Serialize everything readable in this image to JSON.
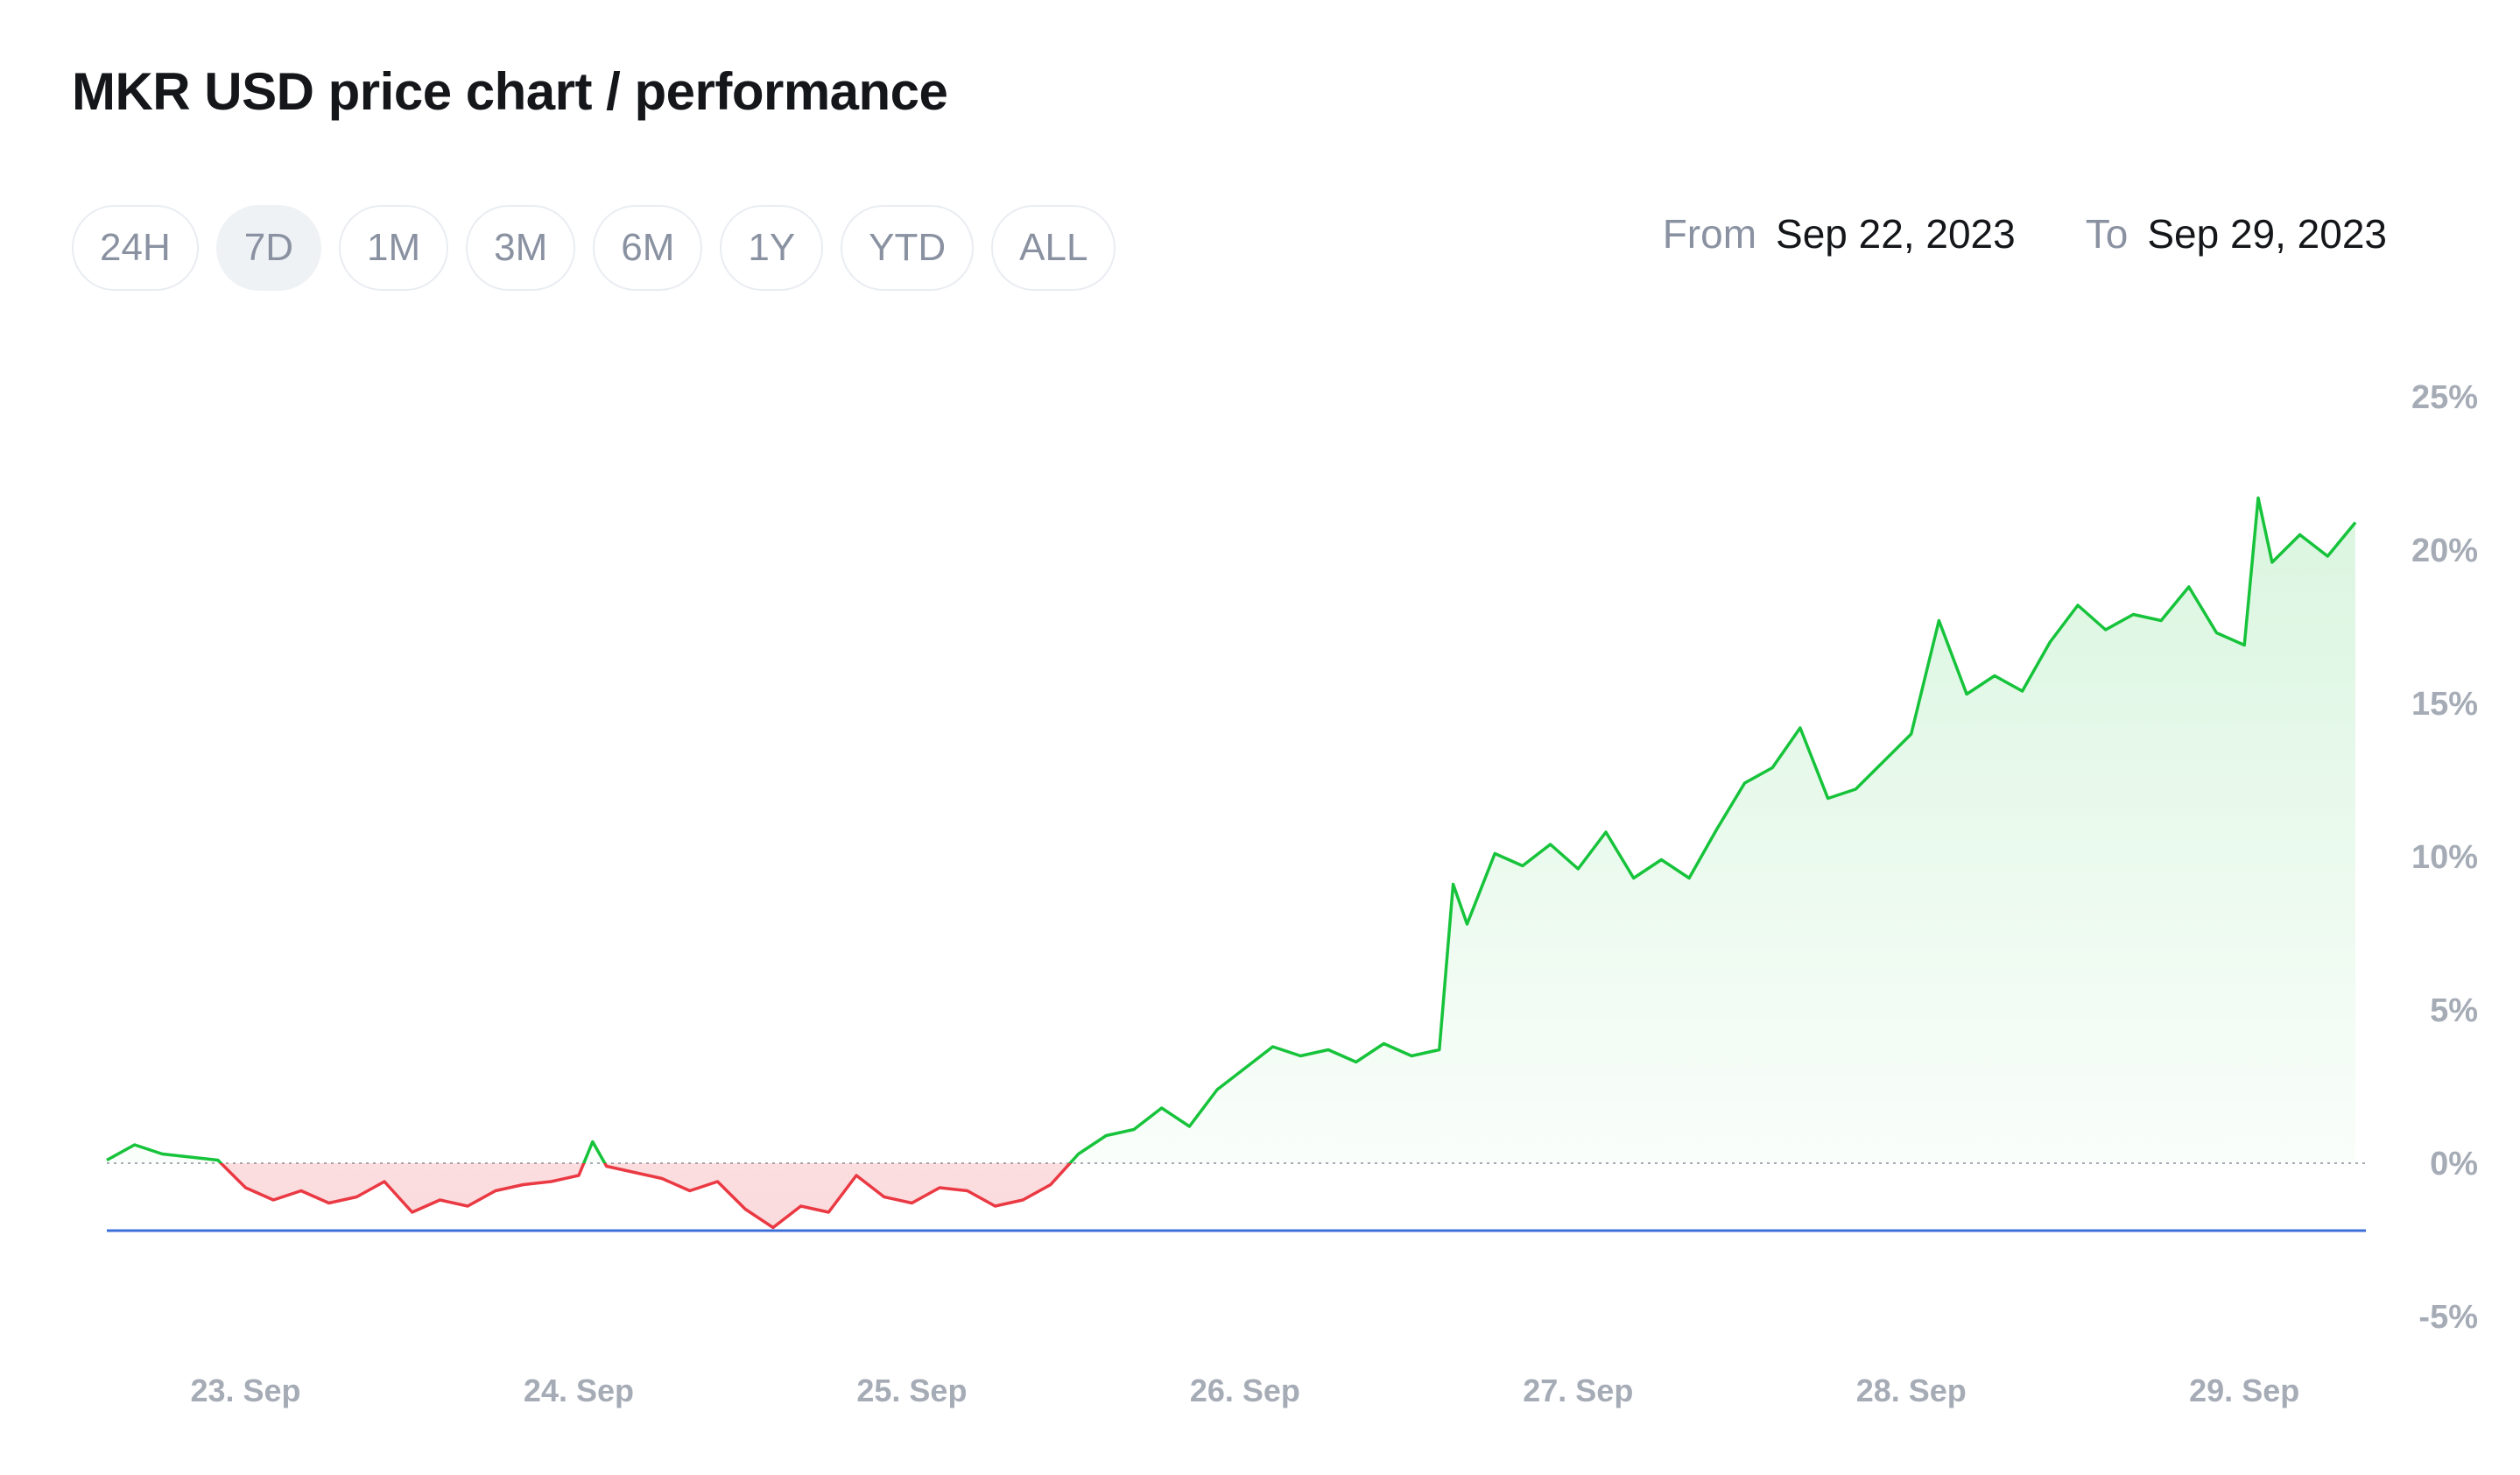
{
  "header": {
    "title": "MKR USD price chart / performance"
  },
  "ranges": [
    {
      "label": "24H",
      "active": false
    },
    {
      "label": "7D",
      "active": true
    },
    {
      "label": "1M",
      "active": false
    },
    {
      "label": "3M",
      "active": false
    },
    {
      "label": "6M",
      "active": false
    },
    {
      "label": "1Y",
      "active": false
    },
    {
      "label": "YTD",
      "active": false
    },
    {
      "label": "ALL",
      "active": false
    }
  ],
  "date_range": {
    "from_label": "From",
    "from_value": "Sep 22, 2023",
    "to_label": "To",
    "to_value": "Sep 29, 2023"
  },
  "colors": {
    "up": "#16c33a",
    "down": "#ea3943",
    "up_fill": "#16c33a",
    "down_fill": "#ea3943",
    "baseline": "#a6acb6",
    "reference": "#3d6fd9",
    "axis_text": "#a6acb6"
  },
  "chart_data": {
    "type": "area",
    "title": "MKR USD price chart / performance",
    "xlabel": "",
    "ylabel": "",
    "y_unit": "%",
    "ylim": [
      -5,
      25
    ],
    "x_start": "2023-09-22 14:00",
    "x_end": "2023-09-29 08:00",
    "x_tick_labels": [
      "23. Sep",
      "24. Sep",
      "25. Sep",
      "26. Sep",
      "27. Sep",
      "28. Sep",
      "29. Sep"
    ],
    "y_tick_labels": [
      "25%",
      "20%",
      "15%",
      "10%",
      "5%",
      "0%",
      "-5%"
    ],
    "y_tick_values": [
      25,
      20,
      15,
      10,
      5,
      0,
      -5
    ],
    "baseline": 0,
    "reference_line": -2.2,
    "grid": false,
    "legend": "none",
    "series": [
      {
        "x": [
          "2023-09-22 14:00",
          "2023-09-22 16:00",
          "2023-09-22 18:00",
          "2023-09-22 20:00",
          "2023-09-22 22:00",
          "2023-09-23 00:00",
          "2023-09-23 02:00",
          "2023-09-23 04:00",
          "2023-09-23 06:00",
          "2023-09-23 08:00",
          "2023-09-23 10:00",
          "2023-09-23 12:00",
          "2023-09-23 14:00",
          "2023-09-23 16:00",
          "2023-09-23 18:00",
          "2023-09-23 20:00",
          "2023-09-23 22:00",
          "2023-09-24 00:00",
          "2023-09-24 01:00",
          "2023-09-24 02:00",
          "2023-09-24 04:00",
          "2023-09-24 06:00",
          "2023-09-24 08:00",
          "2023-09-24 10:00",
          "2023-09-24 12:00",
          "2023-09-24 14:00",
          "2023-09-24 16:00",
          "2023-09-24 18:00",
          "2023-09-24 20:00",
          "2023-09-24 22:00",
          "2023-09-25 00:00",
          "2023-09-25 02:00",
          "2023-09-25 04:00",
          "2023-09-25 06:00",
          "2023-09-25 08:00",
          "2023-09-25 10:00",
          "2023-09-25 12:00",
          "2023-09-25 14:00",
          "2023-09-25 16:00",
          "2023-09-25 18:00",
          "2023-09-25 20:00",
          "2023-09-25 22:00",
          "2023-09-26 00:00",
          "2023-09-26 02:00",
          "2023-09-26 04:00",
          "2023-09-26 06:00",
          "2023-09-26 08:00",
          "2023-09-26 10:00",
          "2023-09-26 12:00",
          "2023-09-26 14:00",
          "2023-09-26 15:00",
          "2023-09-26 16:00",
          "2023-09-26 18:00",
          "2023-09-26 20:00",
          "2023-09-26 22:00",
          "2023-09-27 00:00",
          "2023-09-27 02:00",
          "2023-09-27 04:00",
          "2023-09-27 06:00",
          "2023-09-27 08:00",
          "2023-09-27 10:00",
          "2023-09-27 12:00",
          "2023-09-27 14:00",
          "2023-09-27 16:00",
          "2023-09-27 18:00",
          "2023-09-27 20:00",
          "2023-09-27 22:00",
          "2023-09-28 00:00",
          "2023-09-28 02:00",
          "2023-09-28 04:00",
          "2023-09-28 06:00",
          "2023-09-28 08:00",
          "2023-09-28 10:00",
          "2023-09-28 12:00",
          "2023-09-28 14:00",
          "2023-09-28 16:00",
          "2023-09-28 18:00",
          "2023-09-28 20:00",
          "2023-09-28 22:00",
          "2023-09-29 00:00",
          "2023-09-29 01:00",
          "2023-09-29 02:00",
          "2023-09-29 04:00",
          "2023-09-29 06:00",
          "2023-09-29 08:00"
        ],
        "values": [
          0.1,
          0.6,
          0.3,
          0.2,
          0.1,
          -0.8,
          -1.2,
          -0.9,
          -1.3,
          -1.1,
          -0.6,
          -1.6,
          -1.2,
          -1.4,
          -0.9,
          -0.7,
          -0.6,
          -0.4,
          0.7,
          -0.1,
          -0.3,
          -0.5,
          -0.9,
          -0.6,
          -1.5,
          -2.1,
          -1.4,
          -1.6,
          -0.4,
          -1.1,
          -1.3,
          -0.8,
          -0.9,
          -1.4,
          -1.2,
          -0.7,
          0.3,
          0.9,
          1.1,
          1.8,
          1.2,
          2.4,
          3.1,
          3.8,
          3.5,
          3.7,
          3.3,
          3.9,
          3.5,
          3.7,
          9.1,
          7.8,
          10.1,
          9.7,
          10.4,
          9.6,
          10.8,
          9.3,
          9.9,
          9.3,
          10.9,
          12.4,
          12.9,
          14.2,
          11.9,
          12.2,
          13.1,
          14.0,
          17.7,
          15.3,
          15.9,
          15.4,
          17.0,
          18.2,
          17.4,
          17.9,
          17.7,
          18.8,
          17.3,
          16.9,
          21.7,
          19.6,
          20.5,
          19.8,
          20.9
        ]
      }
    ]
  }
}
